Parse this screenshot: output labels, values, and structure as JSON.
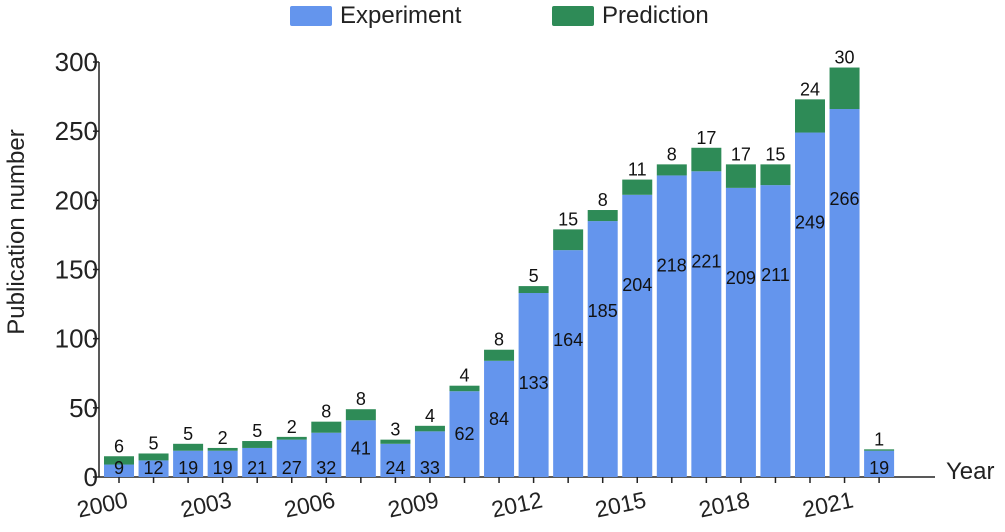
{
  "chart_data": {
    "type": "bar",
    "stacked": true,
    "title": "",
    "xlabel": "Year",
    "ylabel": "Publication number",
    "ylim": [
      0,
      300
    ],
    "y_ticks": [
      "0",
      "50",
      "100",
      "150",
      "200",
      "250",
      "300"
    ],
    "categories": [
      "2000",
      "2001",
      "2002",
      "2003",
      "2004",
      "2005",
      "2006",
      "2007",
      "2008",
      "2009",
      "2010",
      "2011",
      "2012",
      "2013",
      "2014",
      "2015",
      "2016",
      "2017",
      "2018",
      "2019",
      "2020",
      "2021",
      "2022"
    ],
    "x_tick_labels": [
      {
        "index": 0,
        "label": "2000"
      },
      {
        "index": 3,
        "label": "2003"
      },
      {
        "index": 6,
        "label": "2006"
      },
      {
        "index": 9,
        "label": "2009"
      },
      {
        "index": 12,
        "label": "2012"
      },
      {
        "index": 15,
        "label": "2015"
      },
      {
        "index": 18,
        "label": "2018"
      },
      {
        "index": 21,
        "label": "2021"
      }
    ],
    "series": [
      {
        "name": "Experiment",
        "color": "#6495ed",
        "values": [
          9,
          12,
          19,
          19,
          21,
          27,
          32,
          41,
          24,
          33,
          62,
          84,
          133,
          164,
          185,
          204,
          218,
          221,
          209,
          211,
          249,
          266,
          19
        ]
      },
      {
        "name": "Prediction",
        "color": "#2e8b57",
        "values": [
          6,
          5,
          5,
          2,
          5,
          2,
          8,
          8,
          3,
          4,
          4,
          8,
          5,
          15,
          8,
          11,
          8,
          17,
          17,
          15,
          24,
          30,
          1
        ]
      }
    ],
    "legend_position": "top-center",
    "grid": false
  }
}
